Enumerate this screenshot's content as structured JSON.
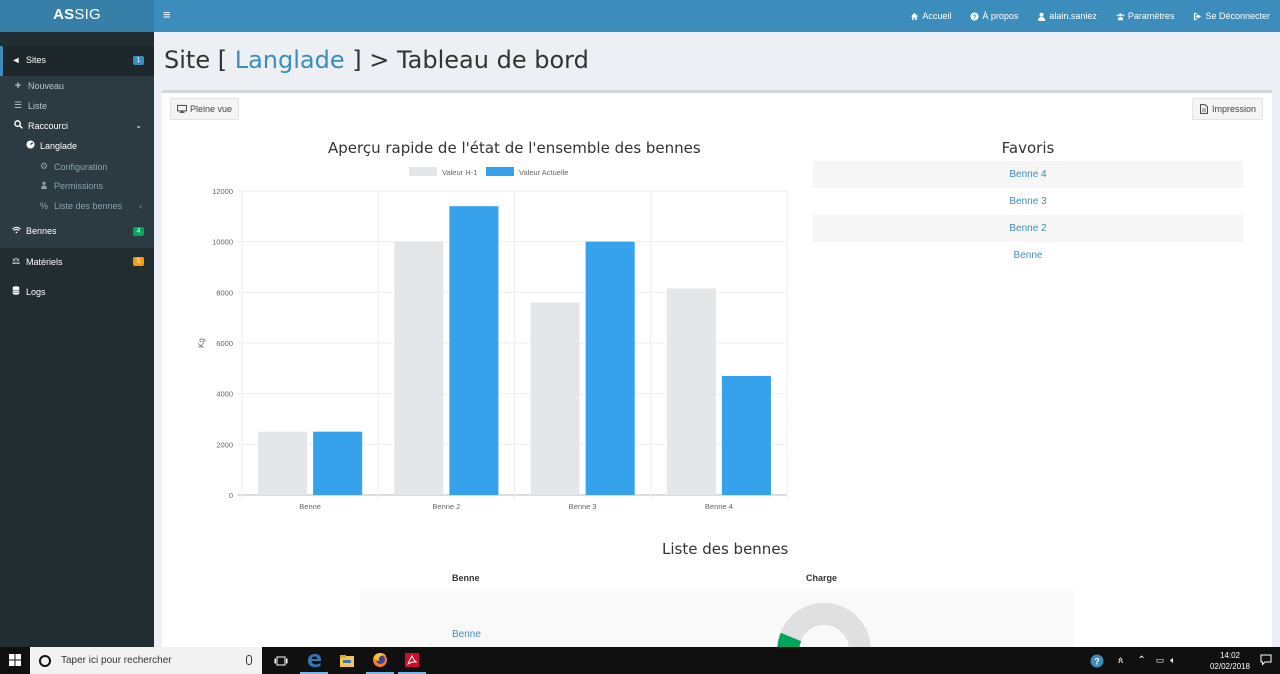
{
  "app": {
    "logo_bold": "AS",
    "logo_rest": "SIG",
    "menu_toggle": "≡"
  },
  "topnav": [
    {
      "label": "Accueil",
      "icon": "home-icon"
    },
    {
      "label": "À propos",
      "icon": "question-icon"
    },
    {
      "label": "alain.saniez",
      "icon": "user-icon"
    },
    {
      "label": "Paramètres",
      "icon": "users-icon"
    },
    {
      "label": "Se Déconnecter",
      "icon": "logout-icon"
    }
  ],
  "sidebar": {
    "sites": {
      "label": "Sites",
      "badge": "1",
      "badge_color": "#3c8dbc"
    },
    "nouveau": "Nouveau",
    "liste": "Liste",
    "raccourci": "Raccourci",
    "site": "Langlade",
    "configuration": "Configuration",
    "permissions": "Permissions",
    "liste_bennes": "Liste des bennes",
    "bennes": {
      "label": "Bennes",
      "badge": "4",
      "badge_color": "#00a65a"
    },
    "materiels": {
      "label": "Matériels",
      "badge": "5",
      "badge_color": "#f39c12"
    },
    "logs": "Logs"
  },
  "page": {
    "title_prefix": "Site [ ",
    "site_name": "Langlade",
    "title_suffix": " ] > Tableau de bord",
    "fullview_button": "Pleine vue",
    "print_button": "Impression"
  },
  "chart_data": {
    "type": "bar",
    "title": "Aperçu rapide de l'état de l'ensemble des bennes",
    "categories": [
      "Benne",
      "Benne 2",
      "Benne 3",
      "Benne 4"
    ],
    "series": [
      {
        "name": "Valeur H-1",
        "values": [
          2500,
          10000,
          7600,
          8150
        ],
        "color": "#e5e6ea"
      },
      {
        "name": "Valeur Actuelle",
        "values": [
          2500,
          11400,
          10000,
          4700
        ],
        "color": "#36a2eb"
      }
    ],
    "ylabel": "Kg",
    "ylim": [
      0,
      12000
    ],
    "yticks": [
      "0",
      "2000",
      "4000",
      "6000",
      "8000",
      "10000",
      "12000"
    ],
    "legend": "top",
    "grid": true
  },
  "favoris": {
    "title": "Favoris",
    "items": [
      "Benne 4",
      "Benne 3",
      "Benne 2",
      "Benne"
    ]
  },
  "bennes_list": {
    "title": "Liste des bennes",
    "headers": [
      "Benne",
      "Charge"
    ],
    "rows": [
      {
        "name": "Benne"
      }
    ],
    "gauge_colors": {
      "fill": "#00a65a",
      "empty": "#e0e0e0"
    }
  },
  "taskbar": {
    "search_placeholder": "Taper ici pour rechercher",
    "time": "14:02",
    "date": "02/02/2018"
  }
}
